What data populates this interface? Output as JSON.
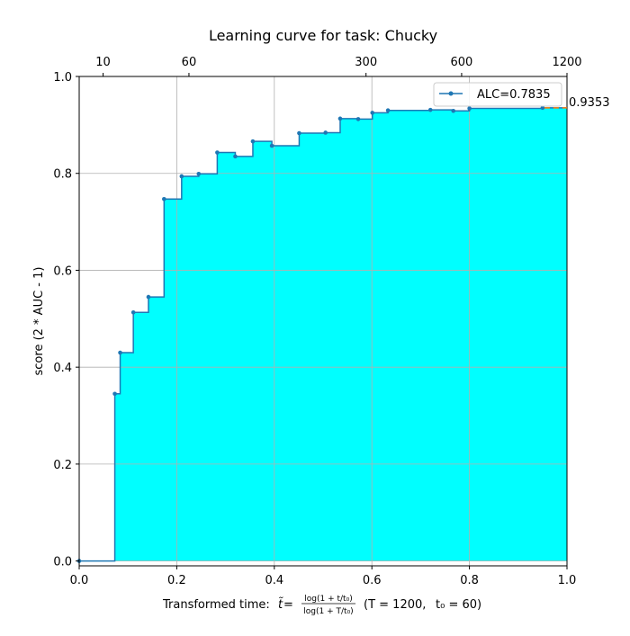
{
  "chart_data": {
    "type": "line",
    "title": "Learning curve for task: Chucky",
    "ylabel": "score (2 * AUC - 1)",
    "xlabel": {
      "prefix": "Transformed time: ",
      "t_tilde": "t̃",
      "equals": " = ",
      "num": "log(1 + t/t₀)",
      "den": "log(1 + T/t₀)",
      "params_T": "(T = 1200,",
      "params_t0": "t₀ = 60)"
    },
    "xlim": [
      0.0,
      1.0
    ],
    "ylim": [
      -0.01,
      1.0
    ],
    "x_ticks": [
      {
        "value": 0.0,
        "label": "0.0"
      },
      {
        "value": 0.2,
        "label": "0.2"
      },
      {
        "value": 0.4,
        "label": "0.4"
      },
      {
        "value": 0.6,
        "label": "0.6"
      },
      {
        "value": 0.8,
        "label": "0.8"
      },
      {
        "value": 1.0,
        "label": "1.0"
      }
    ],
    "y_ticks": [
      {
        "value": 0.0,
        "label": "0.0"
      },
      {
        "value": 0.2,
        "label": "0.2"
      },
      {
        "value": 0.4,
        "label": "0.4"
      },
      {
        "value": 0.6,
        "label": "0.6"
      },
      {
        "value": 0.8,
        "label": "0.8"
      },
      {
        "value": 1.0,
        "label": "1.0"
      }
    ],
    "top_ticks": [
      {
        "value": 0.049,
        "label": "10"
      },
      {
        "value": 0.225,
        "label": "60"
      },
      {
        "value": 0.588,
        "label": "300"
      },
      {
        "value": 0.784,
        "label": "600"
      },
      {
        "value": 1.0,
        "label": "1200"
      }
    ],
    "grid": true,
    "series": [
      {
        "name": "ALC=0.7835",
        "step": "post",
        "x": [
          0.0,
          0.073,
          0.084,
          0.111,
          0.142,
          0.174,
          0.21,
          0.245,
          0.283,
          0.32,
          0.356,
          0.395,
          0.451,
          0.505,
          0.535,
          0.572,
          0.601,
          0.633,
          0.72,
          0.767,
          0.8,
          0.95
        ],
        "y": [
          0.0,
          0.345,
          0.43,
          0.513,
          0.545,
          0.747,
          0.794,
          0.799,
          0.843,
          0.835,
          0.866,
          0.857,
          0.883,
          0.884,
          0.913,
          0.912,
          0.925,
          0.93,
          0.931,
          0.929,
          0.934,
          0.9353
        ],
        "line_color": "#1f77b4",
        "fill_color": "#00ffff"
      }
    ],
    "final_value": {
      "y": 0.9353,
      "label": "0.9353",
      "color": "#ff7f0e"
    },
    "legend": {
      "placement": "top-right",
      "label": "ALC=0.7835"
    }
  }
}
